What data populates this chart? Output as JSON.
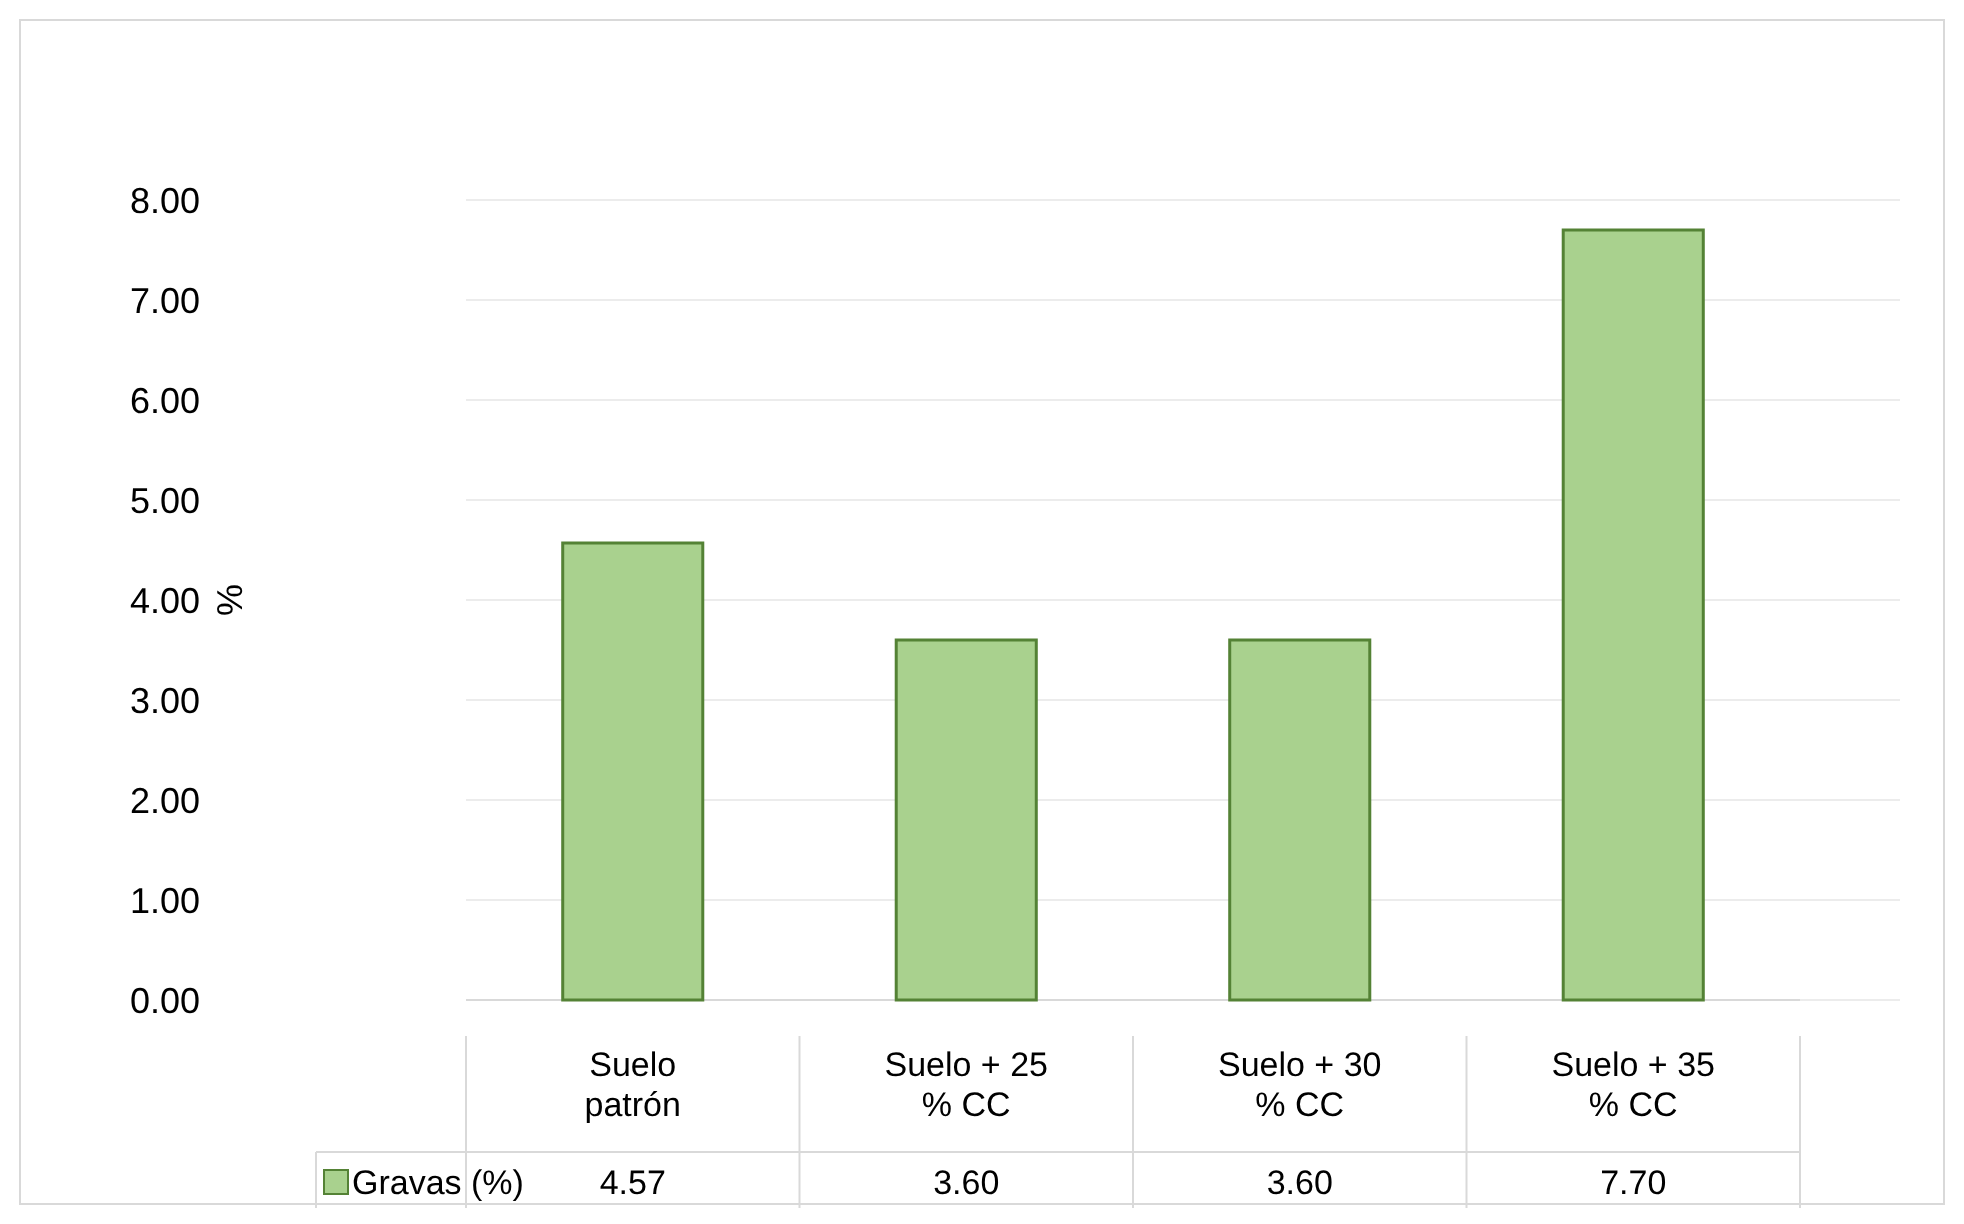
{
  "chart_data": {
    "type": "bar",
    "ylabel": "%",
    "categories": [
      "Suelo\npatrón",
      "Suelo + 25\n% CC",
      "Suelo + 30\n% CC",
      "Suelo + 35\n% CC"
    ],
    "series": [
      {
        "name": "Gravas (%)",
        "color": "#a9d18e",
        "values": [
          4.57,
          3.6,
          3.6,
          7.7
        ],
        "value_labels": [
          "4.57",
          "3.60",
          "3.60",
          "7.70"
        ]
      }
    ],
    "ylim": [
      0,
      8
    ],
    "yticks": [
      {
        "value": 0,
        "label": "0.00"
      },
      {
        "value": 1,
        "label": "1.00"
      },
      {
        "value": 2,
        "label": "2.00"
      },
      {
        "value": 3,
        "label": "3.00"
      },
      {
        "value": 4,
        "label": "4.00"
      },
      {
        "value": 5,
        "label": "5.00"
      },
      {
        "value": 6,
        "label": "6.00"
      },
      {
        "value": 7,
        "label": "7.00"
      },
      {
        "value": 8,
        "label": "8.00"
      }
    ],
    "grid": "y",
    "legend": "bottom"
  }
}
